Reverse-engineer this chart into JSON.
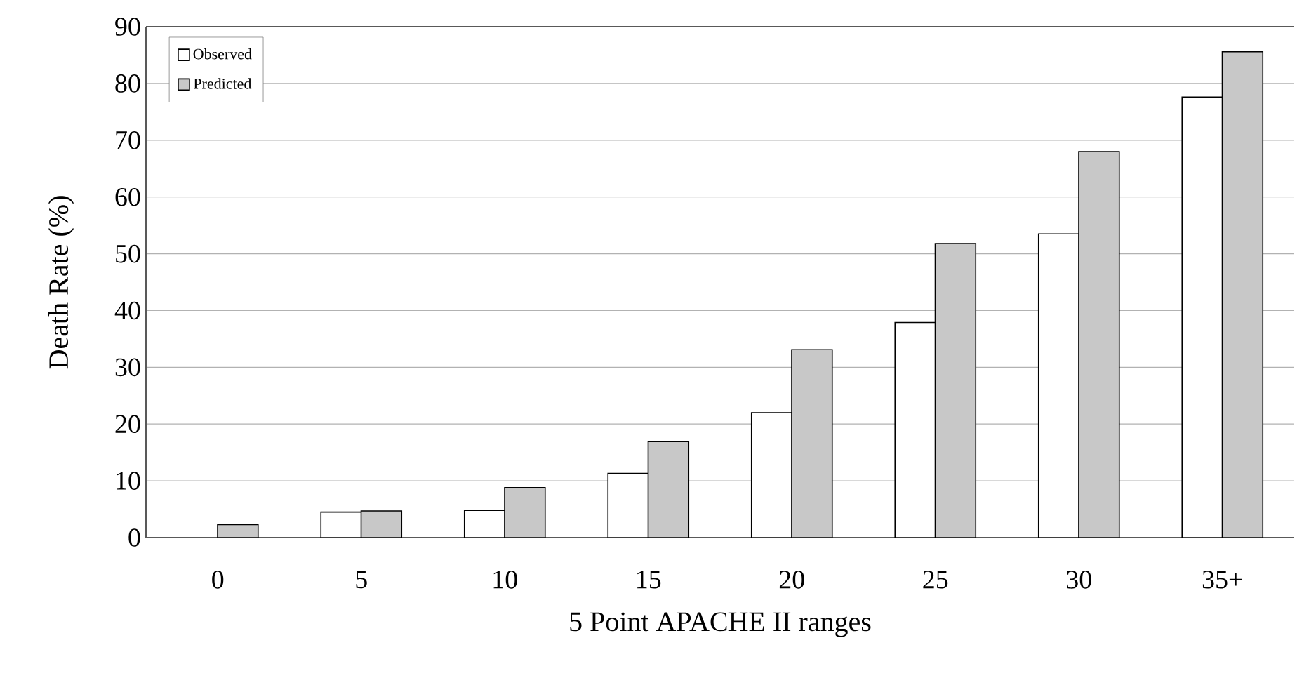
{
  "chart_data": {
    "type": "bar",
    "xlabel": "5 Point APACHE II ranges",
    "ylabel": "Death Rate (%)",
    "categories": [
      "0",
      "5",
      "10",
      "15",
      "20",
      "25",
      "30",
      "35+"
    ],
    "series": [
      {
        "name": "Observed",
        "color": "#ffffff",
        "values": [
          null,
          4.5,
          4.8,
          11.3,
          22.0,
          37.9,
          53.5,
          77.6
        ]
      },
      {
        "name": "Predicted",
        "color": "#c8c8c8",
        "values": [
          2.3,
          4.7,
          8.8,
          16.9,
          33.1,
          51.8,
          68.0,
          85.6
        ]
      }
    ],
    "ylim": [
      0,
      90
    ],
    "yticks": [
      0,
      10,
      20,
      30,
      40,
      50,
      60,
      70,
      80,
      90
    ],
    "grid": "y",
    "legend": "top left"
  }
}
